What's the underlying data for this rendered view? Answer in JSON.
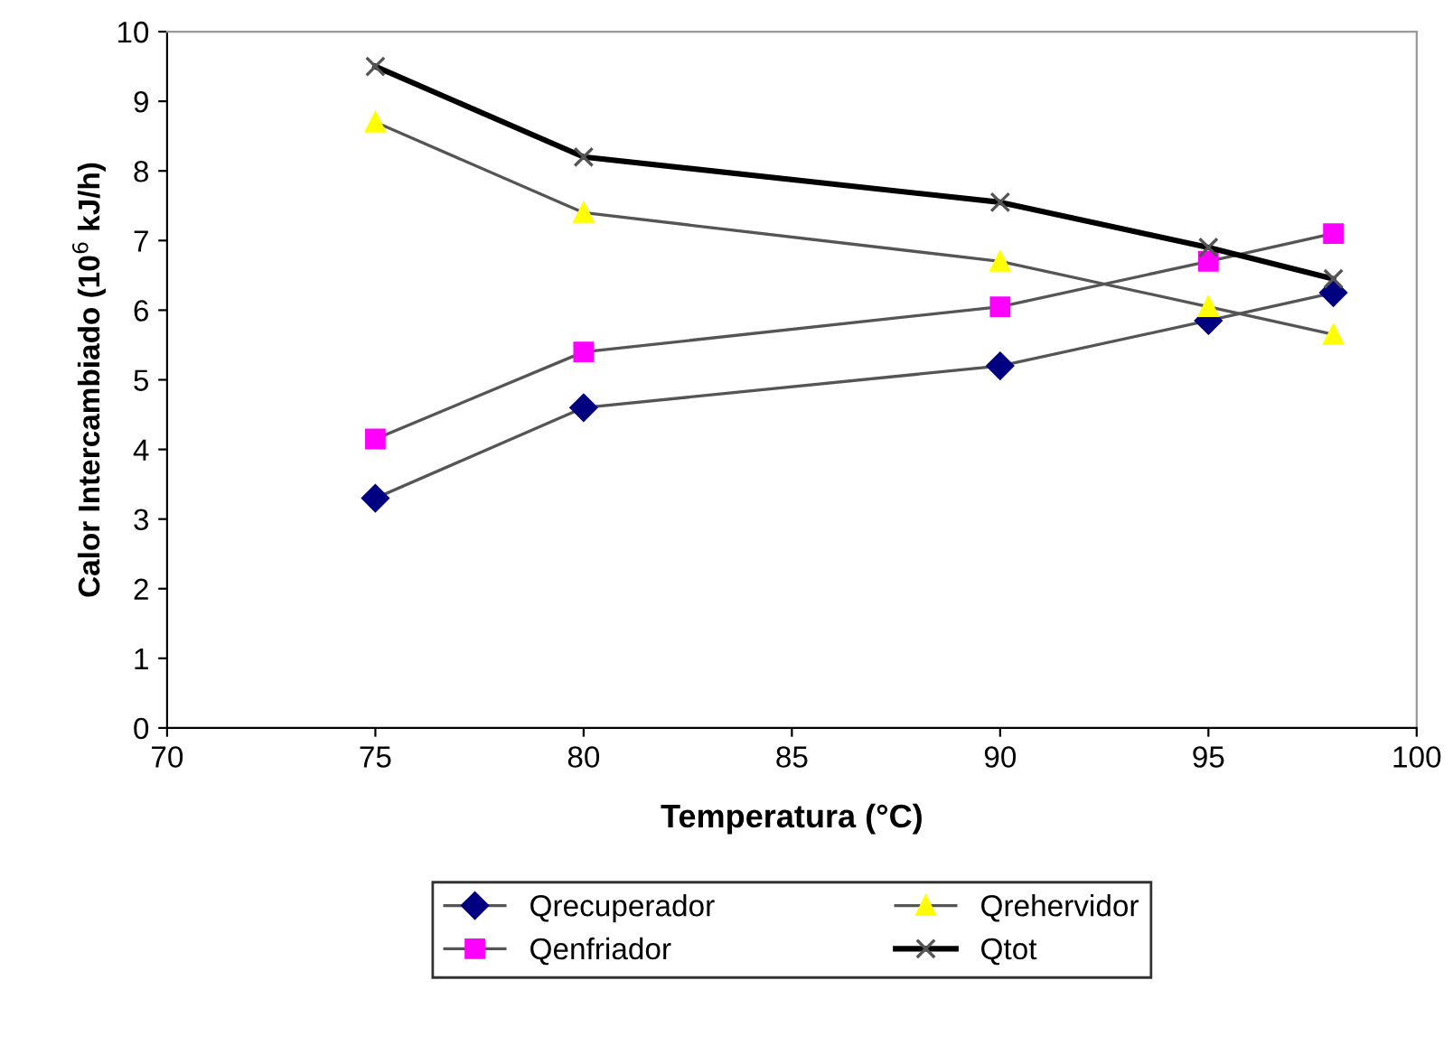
{
  "chart_data": {
    "type": "line",
    "xlabel": "Temperatura (°C)",
    "ylabel": "Calor Intercambiado (10$^{6}$ kJ/h)",
    "x": [
      75,
      80,
      90,
      95,
      98
    ],
    "series": [
      {
        "name": "Qrecuperador",
        "color": "#000080",
        "marker": "diamond",
        "values": [
          3.3,
          4.6,
          5.2,
          5.85,
          6.25
        ]
      },
      {
        "name": "Qenfriador",
        "color": "#ff00ff",
        "marker": "square",
        "values": [
          4.15,
          5.4,
          6.05,
          6.7,
          7.1
        ]
      },
      {
        "name": "Qrehervidor",
        "color": "#ffff00",
        "marker": "triangle",
        "values": [
          8.7,
          7.4,
          6.7,
          6.05,
          5.65
        ]
      },
      {
        "name": "Qtot",
        "color": "#000000",
        "marker": "cross",
        "values": [
          9.5,
          8.2,
          7.55,
          6.9,
          6.45
        ]
      }
    ],
    "xlim": [
      70,
      100
    ],
    "xticks": [
      70,
      75,
      80,
      85,
      90,
      95,
      100
    ],
    "ylim": [
      0,
      10
    ],
    "yticks": [
      0,
      1,
      2,
      3,
      4,
      5,
      6,
      7,
      8,
      9,
      10
    ],
    "grid": false,
    "legend": "bottom",
    "line_style": "solid"
  }
}
